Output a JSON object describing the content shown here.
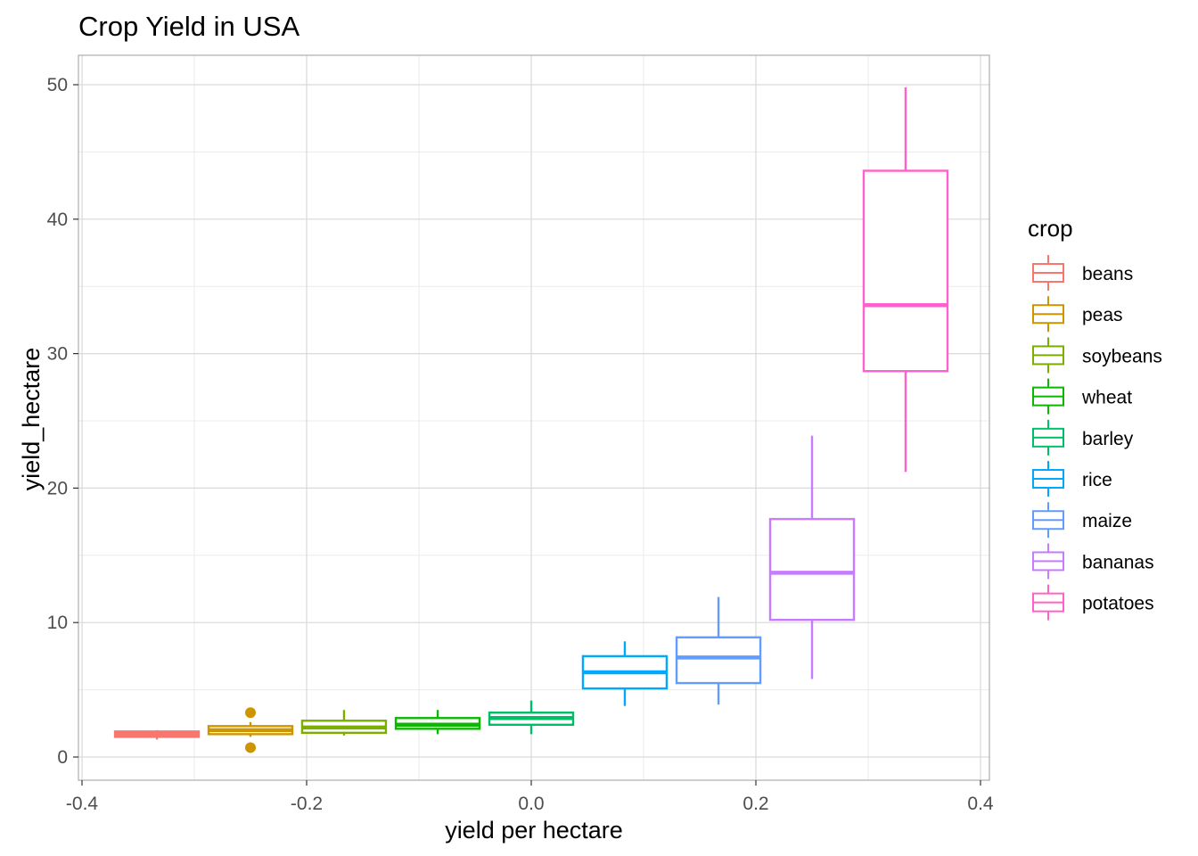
{
  "chart_data": {
    "type": "boxplot",
    "title": "Crop Yield in USA",
    "xlabel": "yield per hectare",
    "ylabel": "yield_hectare",
    "xlim": [
      -0.4,
      0.4
    ],
    "ylim": [
      0,
      50
    ],
    "x_ticks": [
      -0.4,
      -0.2,
      0.0,
      0.2,
      0.4
    ],
    "x_tick_labels": [
      "-0.4",
      "-0.2",
      "0.0",
      "0.2",
      "0.4"
    ],
    "y_ticks": [
      0,
      10,
      20,
      30,
      40,
      50
    ],
    "y_tick_labels": [
      "0",
      "10",
      "20",
      "30",
      "40",
      "50"
    ],
    "grid": true,
    "legend_title": "crop",
    "legend_position": "right",
    "series": [
      {
        "name": "beans",
        "color": "#F8766D",
        "x_center": -0.3333,
        "whisker_low": 1.3,
        "q1": 1.5,
        "median": 1.7,
        "q3": 1.9,
        "whisker_high": 2.0,
        "outliers": []
      },
      {
        "name": "peas",
        "color": "#CD9600",
        "x_center": -0.25,
        "whisker_low": 1.5,
        "q1": 1.7,
        "median": 2.0,
        "q3": 2.3,
        "whisker_high": 2.6,
        "outliers": [
          0.7,
          3.3
        ]
      },
      {
        "name": "soybeans",
        "color": "#7CAE00",
        "x_center": -0.1667,
        "whisker_low": 1.6,
        "q1": 1.8,
        "median": 2.2,
        "q3": 2.7,
        "whisker_high": 3.5,
        "outliers": []
      },
      {
        "name": "wheat",
        "color": "#0CB702",
        "x_center": -0.0833,
        "whisker_low": 1.7,
        "q1": 2.1,
        "median": 2.4,
        "q3": 2.9,
        "whisker_high": 3.5,
        "outliers": []
      },
      {
        "name": "barley",
        "color": "#00BE67",
        "x_center": 0.0,
        "whisker_low": 1.7,
        "q1": 2.4,
        "median": 2.9,
        "q3": 3.3,
        "whisker_high": 4.2,
        "outliers": []
      },
      {
        "name": "rice",
        "color": "#00A9FF",
        "x_center": 0.0833,
        "whisker_low": 3.8,
        "q1": 5.1,
        "median": 6.3,
        "q3": 7.5,
        "whisker_high": 8.6,
        "outliers": []
      },
      {
        "name": "maize",
        "color": "#619CFF",
        "x_center": 0.1667,
        "whisker_low": 3.9,
        "q1": 5.5,
        "median": 7.4,
        "q3": 8.9,
        "whisker_high": 11.9,
        "outliers": []
      },
      {
        "name": "bananas",
        "color": "#C77CFF",
        "x_center": 0.25,
        "whisker_low": 5.8,
        "q1": 10.2,
        "median": 13.7,
        "q3": 17.7,
        "whisker_high": 23.9,
        "outliers": []
      },
      {
        "name": "potatoes",
        "color": "#FF61CC",
        "x_center": 0.3333,
        "whisker_low": 21.2,
        "q1": 28.7,
        "median": 33.6,
        "q3": 43.6,
        "whisker_high": 49.8,
        "outliers": []
      }
    ]
  },
  "colors": {
    "grid_major": "#d9d9d9",
    "grid_minor": "#ebebeb",
    "panel_border": "#b3b3b3",
    "axis_text": "#4d4d4d",
    "title_text": "#000000"
  }
}
